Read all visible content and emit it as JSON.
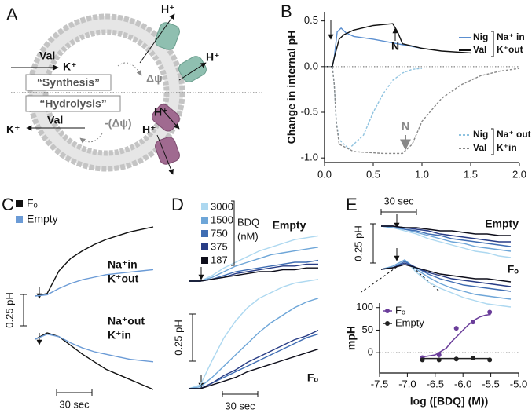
{
  "diagram": {
    "panel": "A",
    "labels": [
      "H⁺",
      "H⁺",
      "Val",
      "K⁺",
      "Δψ",
      "“Synthesis”",
      "“Hydrolysis”",
      "H⁺",
      "H⁺",
      "K⁺",
      "Val",
      "-(Δψ)"
    ]
  },
  "chart_data": [
    {
      "type": "line",
      "panel": "B",
      "ylabel": "Change in internal pH",
      "xlim": [
        0,
        2
      ],
      "ylim": [
        -1.05,
        0.6
      ],
      "xticks": [
        {
          "value": 0,
          "label": "0.0"
        },
        {
          "value": 0.5,
          "label": "0.5"
        },
        {
          "value": 1,
          "label": "1.0"
        },
        {
          "value": 1.5,
          "label": "1.5"
        },
        {
          "value": 2,
          "label": "2.0"
        }
      ],
      "yticks": [
        {
          "value": 0.5,
          "label": "0.5"
        },
        {
          "value": 0,
          "label": "0.0"
        },
        {
          "value": -0.5,
          "label": "-0.5"
        },
        {
          "value": -1,
          "label": "-1.0"
        }
      ],
      "zero_line": true,
      "annotations": [
        "N",
        "N"
      ],
      "series": [
        {
          "name": "Nig",
          "label": "Na⁺ in",
          "color": "#5b8fd0",
          "dash": false,
          "x": [
            0,
            0.08,
            0.1,
            0.13,
            0.17,
            0.22,
            0.3,
            0.5,
            0.7,
            0.9,
            1.0
          ],
          "values": [
            0,
            0,
            0.1,
            0.38,
            0.42,
            0.37,
            0.33,
            0.3,
            0.26,
            0.22,
            0.2
          ]
        },
        {
          "name": "Val",
          "label": "K⁺out",
          "color": "#111111",
          "dash": false,
          "x": [
            0,
            0.08,
            0.1,
            0.15,
            0.2,
            0.3,
            0.5,
            0.7,
            0.75,
            0.8,
            1.0,
            1.2,
            1.5
          ],
          "values": [
            0,
            0,
            0.1,
            0.3,
            0.35,
            0.4,
            0.45,
            0.47,
            0.38,
            0.25,
            0.2,
            0.17,
            0.15
          ]
        },
        {
          "name": "Nig",
          "label": "Na⁺ out",
          "color": "#8fc3e0",
          "dash": true,
          "x": [
            0,
            0.08,
            0.1,
            0.12,
            0.15,
            0.25,
            0.4,
            0.5,
            0.6,
            0.7,
            0.8,
            0.9,
            1.0
          ],
          "values": [
            0,
            0,
            -0.2,
            -0.6,
            -0.8,
            -0.9,
            -0.75,
            -0.5,
            -0.3,
            -0.15,
            -0.07,
            -0.03,
            -0.02
          ]
        },
        {
          "name": "Val",
          "label": "K⁺in",
          "color": "#888888",
          "dash": true,
          "x": [
            0,
            0.08,
            0.1,
            0.12,
            0.15,
            0.3,
            0.6,
            0.8,
            0.9,
            1.0,
            1.2,
            1.4,
            1.6,
            1.8,
            2.0
          ],
          "values": [
            0,
            0,
            -0.2,
            -0.6,
            -0.85,
            -0.93,
            -0.95,
            -0.95,
            -0.85,
            -0.6,
            -0.35,
            -0.2,
            -0.1,
            -0.05,
            -0.02
          ]
        }
      ]
    },
    {
      "type": "trace",
      "panel": "C",
      "x": [
        0,
        10,
        20,
        30,
        40,
        50,
        60,
        70,
        80,
        90,
        100
      ],
      "group_labels": [
        [
          "Na⁺in",
          "K⁺out"
        ],
        [
          "Na⁺out",
          "K⁺in"
        ]
      ],
      "series": [
        {
          "name": "Fₒ",
          "color": "#111111",
          "values": [
            [
              0,
              0.02,
              0.2,
              0.3,
              0.36,
              0.41,
              0.45,
              0.48,
              0.51,
              0.53,
              0.55
            ],
            [
              0,
              0.05,
              0.02,
              -0.05,
              -0.12,
              -0.18,
              -0.24,
              -0.28,
              -0.32,
              -0.36,
              -0.4
            ]
          ]
        },
        {
          "name": "Empty",
          "color": "#6b9bd6",
          "values": [
            [
              0,
              0.01,
              0.06,
              0.1,
              0.13,
              0.15,
              0.17,
              0.18,
              0.19,
              0.2,
              0.21
            ],
            [
              0,
              0.04,
              0.02,
              -0.03,
              -0.07,
              -0.1,
              -0.12,
              -0.14,
              -0.16,
              -0.17,
              -0.18
            ]
          ]
        }
      ],
      "scale_bars": {
        "y": {
          "value": 0.25,
          "label": "0.25 pH"
        },
        "x": {
          "value": 30,
          "label": "30 sec"
        }
      }
    },
    {
      "type": "trace",
      "panel": "D",
      "x": [
        0,
        10,
        20,
        30,
        40,
        50,
        60,
        70,
        80,
        90,
        100,
        110
      ],
      "legend_title": [
        "BDQ",
        "(nM)"
      ],
      "group_labels": [
        [
          "Empty"
        ],
        [
          "Fₒ"
        ]
      ],
      "series": [
        {
          "name": "3000",
          "color": "#add8f0",
          "values": [
            [
              0,
              0,
              0.03,
              0.07,
              0.1,
              0.13,
              0.16,
              0.18,
              0.2,
              0.22,
              0.23,
              0.24
            ],
            [
              0,
              0.02,
              0.15,
              0.27,
              0.36,
              0.43,
              0.48,
              0.51,
              0.54,
              0.56,
              0.57,
              0.58
            ]
          ]
        },
        {
          "name": "1500",
          "color": "#6ea6d8",
          "values": [
            [
              0,
              0,
              0.02,
              0.05,
              0.08,
              0.1,
              0.12,
              0.14,
              0.15,
              0.16,
              0.17,
              0.18
            ],
            [
              0,
              0.01,
              0.06,
              0.12,
              0.18,
              0.24,
              0.3,
              0.35,
              0.39,
              0.43,
              0.46,
              0.48
            ]
          ]
        },
        {
          "name": "750",
          "color": "#3f6db3",
          "values": [
            [
              0,
              0,
              0.01,
              0.03,
              0.05,
              0.06,
              0.07,
              0.08,
              0.09,
              0.1,
              0.1,
              0.11
            ],
            [
              0,
              0,
              0.03,
              0.06,
              0.09,
              0.12,
              0.15,
              0.18,
              0.21,
              0.24,
              0.27,
              0.29
            ]
          ]
        },
        {
          "name": "375",
          "color": "#283c85",
          "values": [
            [
              0,
              0,
              0.01,
              0.02,
              0.04,
              0.05,
              0.06,
              0.07,
              0.08,
              0.08,
              0.09,
              0.09
            ],
            [
              0,
              0,
              0.03,
              0.07,
              0.1,
              0.14,
              0.17,
              0.2,
              0.23,
              0.26,
              0.28,
              0.31
            ]
          ]
        },
        {
          "name": "187",
          "color": "#0d0d1a",
          "values": [
            [
              0,
              0,
              0.01,
              0.02,
              0.03,
              0.04,
              0.05,
              0.05,
              0.06,
              0.06,
              0.07,
              0.07
            ],
            [
              0,
              0,
              0.02,
              0.04,
              0.06,
              0.09,
              0.11,
              0.13,
              0.15,
              0.17,
              0.19,
              0.21
            ]
          ]
        }
      ],
      "scale_bars": {
        "y": {
          "value": 0.25,
          "label": "0.25 pH"
        },
        "x": {
          "value": 30,
          "label": "30 sec"
        }
      }
    },
    {
      "type": "trace",
      "panel": "E",
      "x": [
        0,
        10,
        20,
        30,
        40,
        50,
        60,
        70,
        80,
        90,
        100,
        110
      ],
      "group_labels": [
        [
          "Empty"
        ],
        [
          "Fₒ"
        ]
      ],
      "series": [
        {
          "color": "#add8f0",
          "values": [
            [
              0,
              -0.01,
              -0.03,
              -0.05,
              -0.08,
              -0.1,
              -0.12,
              -0.14,
              -0.16,
              -0.17,
              -0.19,
              -0.2
            ],
            [
              0,
              0.02,
              0.06,
              -0.02,
              -0.08,
              -0.12,
              -0.15,
              -0.18,
              -0.2,
              -0.22,
              -0.23,
              -0.24
            ]
          ]
        },
        {
          "color": "#6ea6d8",
          "values": [
            [
              0,
              -0.01,
              -0.02,
              -0.04,
              -0.06,
              -0.08,
              -0.1,
              -0.11,
              -0.13,
              -0.14,
              -0.15,
              -0.16
            ],
            [
              0,
              0.02,
              0.06,
              0,
              -0.05,
              -0.09,
              -0.12,
              -0.14,
              -0.16,
              -0.17,
              -0.18,
              -0.19
            ]
          ]
        },
        {
          "color": "#3f6db3",
          "values": [
            [
              0,
              0,
              -0.02,
              -0.03,
              -0.05,
              -0.06,
              -0.08,
              -0.09,
              -0.1,
              -0.11,
              -0.12,
              -0.13
            ],
            [
              0,
              0.01,
              0.05,
              0.01,
              -0.03,
              -0.06,
              -0.08,
              -0.1,
              -0.11,
              -0.12,
              -0.13,
              -0.14
            ]
          ]
        },
        {
          "color": "#283c85",
          "values": [
            [
              0,
              0,
              -0.01,
              -0.02,
              -0.03,
              -0.05,
              -0.06,
              -0.07,
              -0.08,
              -0.09,
              -0.1,
              -0.1
            ],
            [
              0,
              0.01,
              0.04,
              0.01,
              -0.02,
              -0.04,
              -0.06,
              -0.07,
              -0.08,
              -0.09,
              -0.1,
              -0.11
            ]
          ]
        },
        {
          "color": "#0d0d1a",
          "values": [
            [
              0,
              0,
              -0.01,
              -0.01,
              -0.02,
              -0.03,
              -0.03,
              -0.04,
              -0.05,
              -0.05,
              -0.06,
              -0.06
            ],
            [
              0,
              0.01,
              0.03,
              0.01,
              -0.01,
              -0.03,
              -0.04,
              -0.05,
              -0.06,
              -0.06,
              -0.07,
              -0.08
            ]
          ]
        }
      ],
      "scale_bars": {
        "y": {
          "value": 0.25,
          "label": "0.25 pH"
        },
        "x": {
          "value": 30,
          "label": "30 sec"
        }
      }
    },
    {
      "type": "scatter",
      "xlabel": "log ([BDQ] (M))",
      "ylabel": "mpH",
      "xlim": [
        -7.5,
        -5
      ],
      "ylim": [
        -45,
        110
      ],
      "xticks": [
        {
          "value": -7.5,
          "label": "-7.5"
        },
        {
          "value": -7,
          "label": "-7.0"
        },
        {
          "value": -6.5,
          "label": "-6.5"
        },
        {
          "value": -6,
          "label": "-6.0"
        },
        {
          "value": -5.5,
          "label": "-5.5"
        },
        {
          "value": -5,
          "label": "-5.0"
        }
      ],
      "yticks": [
        100,
        50,
        0
      ],
      "zero_line": true,
      "series": [
        {
          "name": "Fₒ",
          "color": "#6a3d9a",
          "x": [
            -6.73,
            -6.43,
            -6.12,
            -5.82,
            -5.52
          ],
          "values": [
            -11,
            -5,
            54,
            68,
            90
          ],
          "fit_x": [
            -6.75,
            -6.5,
            -6.3,
            -6.2,
            -6.1,
            -6.0,
            -5.9,
            -5.8,
            -5.7,
            -5.6,
            -5.5
          ],
          "fit_values": [
            -10,
            -5,
            10,
            25,
            37,
            50,
            62,
            72,
            79,
            83,
            85
          ]
        },
        {
          "name": "Empty",
          "color": "#222222",
          "x": [
            -6.73,
            -6.43,
            -6.12,
            -5.82,
            -5.52
          ],
          "values": [
            -16,
            -16,
            -14,
            -12,
            -16
          ],
          "fit_x": [
            -6.75,
            -5.5
          ],
          "fit_values": [
            -13,
            -13
          ]
        }
      ]
    }
  ]
}
